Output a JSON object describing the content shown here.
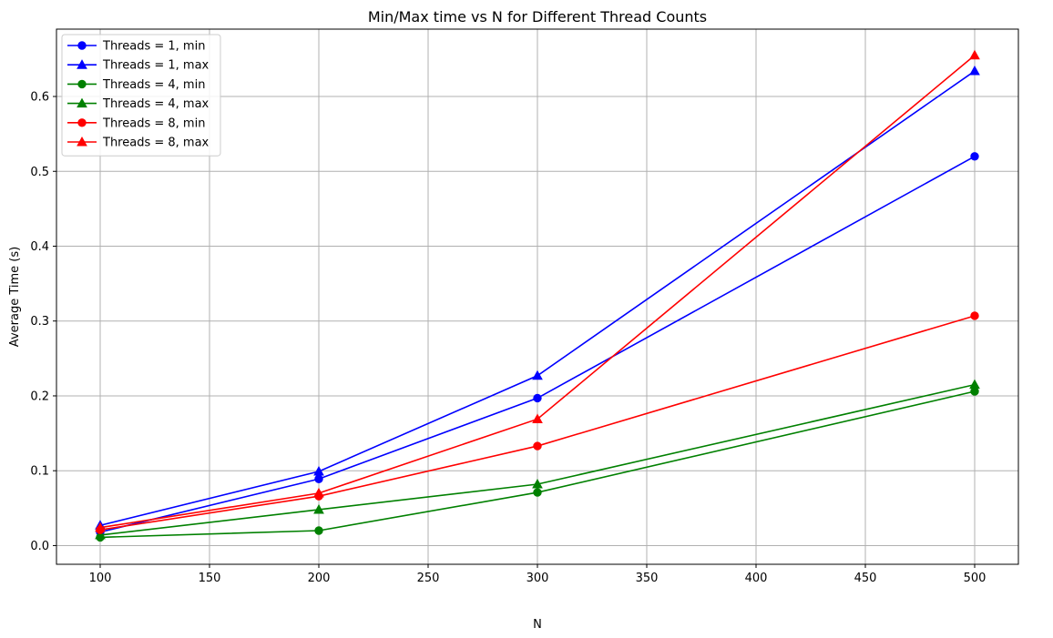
{
  "chart_data": {
    "type": "line",
    "title": "Min/Max time vs N for Different Thread Counts",
    "xlabel": "N",
    "ylabel": "Average Time (s)",
    "xlim": [
      80,
      520
    ],
    "ylim": [
      -0.025,
      0.69
    ],
    "xticks": [
      100,
      150,
      200,
      250,
      300,
      350,
      400,
      450,
      500
    ],
    "yticks": [
      0.0,
      0.1,
      0.2,
      0.3,
      0.4,
      0.5,
      0.6
    ],
    "ytick_labels": [
      "0.0",
      "0.1",
      "0.2",
      "0.3",
      "0.4",
      "0.5",
      "0.6"
    ],
    "grid": true,
    "legend_position": "top-left",
    "x": [
      100,
      200,
      300,
      500
    ],
    "series": [
      {
        "name": "Threads = 1, min",
        "color": "#0000ff",
        "marker": "circle",
        "values": [
          0.018,
          0.089,
          0.197,
          0.52
        ]
      },
      {
        "name": "Threads = 1, max",
        "color": "#0000ff",
        "marker": "triangle",
        "values": [
          0.027,
          0.099,
          0.227,
          0.634
        ]
      },
      {
        "name": "Threads = 4, min",
        "color": "#008000",
        "marker": "circle",
        "values": [
          0.011,
          0.02,
          0.071,
          0.206
        ]
      },
      {
        "name": "Threads = 4, max",
        "color": "#008000",
        "marker": "triangle",
        "values": [
          0.014,
          0.048,
          0.082,
          0.215
        ]
      },
      {
        "name": "Threads = 8, min",
        "color": "#ff0000",
        "marker": "circle",
        "values": [
          0.021,
          0.066,
          0.133,
          0.307
        ]
      },
      {
        "name": "Threads = 8, max",
        "color": "#ff0000",
        "marker": "triangle",
        "values": [
          0.024,
          0.07,
          0.169,
          0.655
        ]
      }
    ]
  }
}
